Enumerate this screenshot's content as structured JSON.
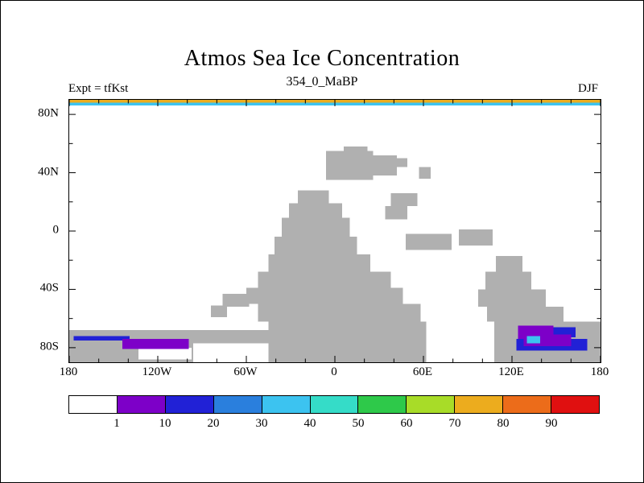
{
  "chart_data": {
    "type": "heatmap",
    "title": "Atmos Sea Ice Concentration",
    "subtitle": "354_0_MaBP",
    "experiment": "Expt = tfKst",
    "season": "DJF",
    "projection": "lat-lon",
    "lon_range": [
      -180,
      180
    ],
    "lat_range": [
      -90,
      90
    ],
    "x_ticks": [
      {
        "label": "180",
        "lon": -180
      },
      {
        "label": "120W",
        "lon": -120
      },
      {
        "label": "60W",
        "lon": -60
      },
      {
        "label": "0",
        "lon": 0
      },
      {
        "label": "60E",
        "lon": 60
      },
      {
        "label": "120E",
        "lon": 120
      },
      {
        "label": "180",
        "lon": 180
      }
    ],
    "y_ticks": [
      {
        "label": "80N",
        "lat": 80
      },
      {
        "label": "40N",
        "lat": 40
      },
      {
        "label": "0",
        "lat": 0
      },
      {
        "label": "40S",
        "lat": -40
      },
      {
        "label": "80S",
        "lat": -80
      }
    ],
    "x_minor_ticks": [
      -160,
      -140,
      -100,
      -80,
      -40,
      -20,
      20,
      40,
      80,
      100,
      140,
      160
    ],
    "y_minor_ticks": [
      -60,
      -20,
      20,
      60
    ],
    "land_color": "#b0b0b0",
    "sea_color": "#ffffff",
    "colorbar": {
      "boundary_labels": [
        "1",
        "10",
        "20",
        "30",
        "40",
        "50",
        "60",
        "70",
        "80",
        "90"
      ],
      "colors": [
        "#ffffff",
        "#7d00c8",
        "#2121d6",
        "#2a7fdd",
        "#3cc3f0",
        "#35dcc8",
        "#2ec94a",
        "#a8dc28",
        "#ecac1e",
        "#ec6c1a",
        "#e01010"
      ]
    },
    "land_cells": [
      [
        -6,
        26,
        35,
        55
      ],
      [
        26,
        42,
        38,
        52
      ],
      [
        6,
        22,
        55,
        58
      ],
      [
        40,
        49,
        44,
        50
      ],
      [
        57,
        65,
        36,
        44
      ],
      [
        38,
        56,
        17,
        26
      ],
      [
        34,
        49,
        8,
        17
      ],
      [
        -25,
        -4,
        19,
        28
      ],
      [
        -31,
        5,
        9,
        19
      ],
      [
        -36,
        10,
        -4,
        9
      ],
      [
        -41,
        15,
        -16,
        -4
      ],
      [
        -45,
        24,
        -28,
        -16
      ],
      [
        -52,
        38,
        -39,
        -28
      ],
      [
        -60,
        46,
        -50,
        -39
      ],
      [
        -52,
        58,
        -62,
        -50
      ],
      [
        -45,
        62,
        -90,
        -62
      ],
      [
        -180,
        -45,
        -77,
        -68
      ],
      [
        -180,
        -96,
        -90,
        -77
      ],
      [
        -76,
        -58,
        -52,
        -43
      ],
      [
        -84,
        -73,
        -59,
        -51
      ],
      [
        -38,
        -29,
        -19,
        -11
      ],
      [
        48,
        79,
        -13,
        -2
      ],
      [
        84,
        107,
        -10,
        1
      ],
      [
        109,
        127,
        -28,
        -17
      ],
      [
        102,
        133,
        -40,
        -28
      ],
      [
        97,
        143,
        -52,
        -40
      ],
      [
        103,
        155,
        -62,
        -52
      ],
      [
        108,
        180,
        -90,
        -62
      ]
    ],
    "sea_ice_cells": [
      [
        -180,
        180,
        88,
        90,
        "#ecac1e"
      ],
      [
        -180,
        180,
        86,
        88,
        "#3cc3f0"
      ],
      [
        -133,
        -97,
        -88,
        -80,
        "#ffffff"
      ],
      [
        -177,
        -139,
        -75,
        -72,
        "#2121d6"
      ],
      [
        -144,
        -99,
        -81,
        -74,
        "#7d00c8"
      ],
      [
        123,
        171,
        -82,
        -74,
        "#2121d6"
      ],
      [
        147,
        163,
        -73,
        -66,
        "#2121d6"
      ],
      [
        124,
        148,
        -74,
        -65,
        "#7d00c8"
      ],
      [
        128,
        160,
        -79,
        -71,
        "#7d00c8"
      ],
      [
        130,
        139,
        -77,
        -72,
        "#3cc3f0"
      ]
    ]
  }
}
